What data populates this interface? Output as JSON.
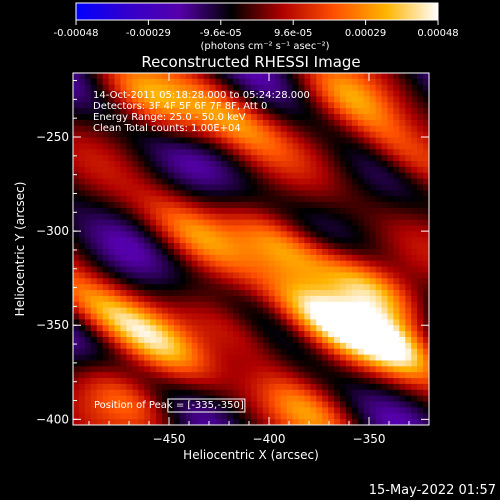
{
  "chart_data": {
    "type": "heatmap",
    "title": "Reconstructed RHESSI Image",
    "xlabel": "Heliocentric X (arcsec)",
    "ylabel": "Heliocentric Y (arcsec)",
    "xlim": [
      -498,
      -320
    ],
    "ylim": [
      -403,
      -216
    ],
    "xticks": [
      -450,
      -400,
      -350
    ],
    "yticks": [
      -250,
      -300,
      -350,
      -400
    ],
    "annotations": [
      "14-Oct-2011 05:18:28.000 to 05:24:28.000",
      "Detectors: 3F 4F 5F 6F 7F 8F, Att 0",
      "Energy Range: 25.0 - 50.0 keV",
      "Clean     Total counts: 1.00E+04"
    ],
    "peak_label": "Position of Peak = [-335,-350]",
    "peak": {
      "x": -335,
      "y": -350
    },
    "colorbar": {
      "min": -0.00048,
      "max": 0.00048,
      "ticks": [
        "-0.00048",
        "-0.00029",
        "-9.6e-05",
        "9.6e-05",
        "0.00029",
        "0.00048"
      ],
      "unit_label": "(photons cm⁻² s⁻¹ asec⁻²)",
      "colormap": [
        "#0000ff",
        "#3300cc",
        "#5500aa",
        "#000000",
        "#b00000",
        "#ff5000",
        "#ffb400",
        "#ffffff"
      ]
    },
    "stripe_angle_deg": 55,
    "ridges": [
      {
        "x": -485,
        "y": -340,
        "amp": 0.0003
      },
      {
        "x": -455,
        "y": -360,
        "amp": 0.00027
      },
      {
        "x": -440,
        "y": -300,
        "amp": 0.00026
      },
      {
        "x": -415,
        "y": -355,
        "amp": 0.00024
      },
      {
        "x": -390,
        "y": -310,
        "amp": 0.00036
      },
      {
        "x": -375,
        "y": -345,
        "amp": 0.00042
      },
      {
        "x": -350,
        "y": -330,
        "amp": 0.00044
      },
      {
        "x": -340,
        "y": -360,
        "amp": 0.00048
      },
      {
        "x": -330,
        "y": -260,
        "amp": 0.0003
      },
      {
        "x": -360,
        "y": -230,
        "amp": 0.00028
      },
      {
        "x": -420,
        "y": -240,
        "amp": 0.00032
      },
      {
        "x": -460,
        "y": -230,
        "amp": 0.0003
      },
      {
        "x": -470,
        "y": -390,
        "amp": 0.00026
      },
      {
        "x": -380,
        "y": -395,
        "amp": 0.00025
      }
    ]
  },
  "footer": {
    "date": "15-May-2022 01:57"
  }
}
